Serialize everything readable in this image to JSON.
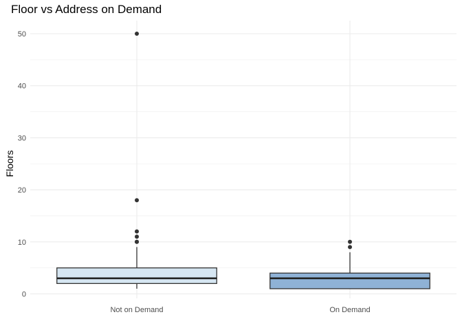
{
  "chart_data": {
    "type": "box",
    "title": "Floor vs Address on Demand",
    "xlabel": "",
    "ylabel": "Floors",
    "ylim": [
      0,
      52
    ],
    "y_ticks": [
      0,
      10,
      20,
      30,
      40,
      50
    ],
    "grid": true,
    "categories": [
      "Not on Demand",
      "On Demand"
    ],
    "boxes": [
      {
        "category": "Not on Demand",
        "color": "#d6e6f2",
        "whisker_low": 1,
        "q1": 2,
        "median": 3,
        "q3": 5,
        "whisker_high": 9,
        "outliers": [
          10,
          10,
          11,
          12,
          18,
          50
        ]
      },
      {
        "category": "On Demand",
        "color": "#8fb2d6",
        "whisker_low": 1,
        "q1": 1,
        "median": 3,
        "q3": 4,
        "whisker_high": 8,
        "outliers": [
          9,
          10
        ]
      }
    ]
  }
}
